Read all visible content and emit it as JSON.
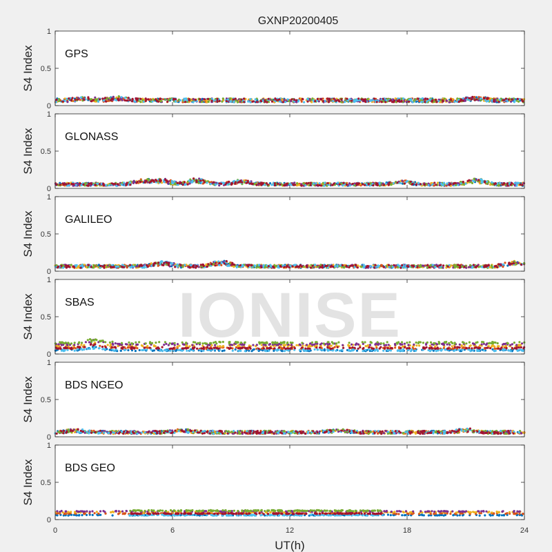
{
  "chart_data": {
    "type": "scatter",
    "title": "GXNP20200405",
    "xlabel": "UT(h)",
    "xlim": [
      0,
      24
    ],
    "xticks": [
      "0",
      "6",
      "12",
      "18",
      "24"
    ],
    "watermark": "IONISE",
    "series_colors": [
      "#0072BD",
      "#D95319",
      "#EDB120",
      "#7E2F8E",
      "#77AC30",
      "#4DBEEE",
      "#A2142F"
    ],
    "panels": [
      {
        "system": "GPS",
        "ylabel": "S4 Index",
        "ylim": [
          0,
          1
        ],
        "yticks": [
          "0",
          "0.5",
          "1"
        ],
        "baseline": 0.07,
        "spread": 0.025,
        "bumps": [
          [
            1.5,
            0.03
          ],
          [
            3.2,
            0.03
          ],
          [
            21.5,
            0.035
          ]
        ],
        "coverage": [
          [
            0,
            24
          ]
        ]
      },
      {
        "system": "GLONASS",
        "ylabel": "S4 Index",
        "ylim": [
          0,
          1
        ],
        "yticks": [
          "0",
          "0.5",
          "1"
        ],
        "baseline": 0.055,
        "spread": 0.02,
        "bumps": [
          [
            4.5,
            0.06
          ],
          [
            5.5,
            0.06
          ],
          [
            7.3,
            0.07
          ],
          [
            9.5,
            0.05
          ],
          [
            17.8,
            0.04
          ],
          [
            21.5,
            0.08
          ]
        ],
        "coverage": [
          [
            0,
            24
          ]
        ]
      },
      {
        "system": "GALILEO",
        "ylabel": "S4 Index",
        "ylim": [
          0,
          1
        ],
        "yticks": [
          "0",
          "0.5",
          "1"
        ],
        "baseline": 0.065,
        "spread": 0.02,
        "bumps": [
          [
            5.5,
            0.06
          ],
          [
            8.5,
            0.07
          ],
          [
            23.5,
            0.06
          ]
        ],
        "coverage": [
          [
            0,
            24
          ]
        ]
      },
      {
        "system": "SBAS",
        "ylabel": "S4 Index",
        "ylim": [
          0,
          1
        ],
        "yticks": [
          "0",
          "0.5",
          "1"
        ],
        "bands": [
          0.05,
          0.08,
          0.11,
          0.13,
          0.15
        ],
        "spread": 0.012,
        "bumps": [
          [
            2.0,
            0.05
          ]
        ],
        "coverage": [
          [
            0,
            24
          ]
        ]
      },
      {
        "system": "BDS NGEO",
        "ylabel": "S4 Index",
        "ylim": [
          0,
          1
        ],
        "yticks": [
          "0",
          "0.5",
          "1"
        ],
        "baseline": 0.06,
        "spread": 0.02,
        "bumps": [
          [
            1.0,
            0.03
          ],
          [
            6.5,
            0.03
          ],
          [
            14.5,
            0.04
          ],
          [
            21.0,
            0.04
          ]
        ],
        "coverage": [
          [
            0,
            24
          ]
        ]
      },
      {
        "system": "BDS GEO",
        "ylabel": "S4 Index",
        "ylim": [
          0,
          1
        ],
        "yticks": [
          "0",
          "0.5",
          "1"
        ],
        "bands": [
          0.06,
          0.08,
          0.1,
          0.11,
          0.12
        ],
        "spread": 0.006,
        "bumps": [],
        "coverage": [
          [
            0,
            24
          ],
          [
            0,
            24
          ],
          [
            0,
            24
          ],
          [
            0,
            24
          ],
          [
            3.8,
            16.8
          ]
        ]
      }
    ]
  }
}
